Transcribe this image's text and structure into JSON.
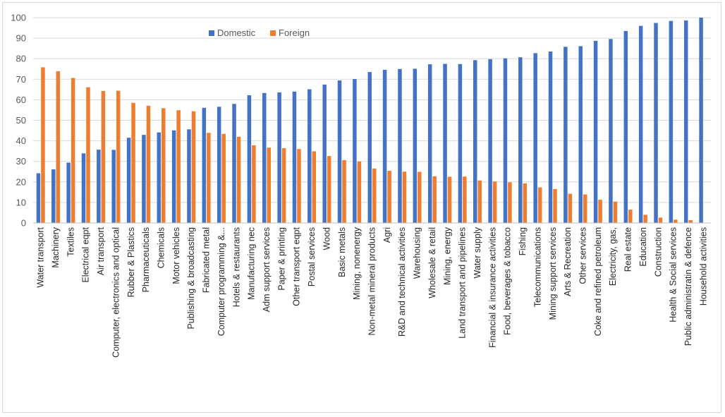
{
  "chart_data": {
    "type": "bar",
    "title": "",
    "xlabel": "",
    "ylabel": "",
    "ylim": [
      0,
      100
    ],
    "yticks": [
      0,
      10,
      20,
      30,
      40,
      50,
      60,
      70,
      80,
      90,
      100
    ],
    "grid": true,
    "legend_position": "top-left-inside",
    "categories": [
      "Water transport",
      "Machinery",
      "Textiles",
      "Electrical eqpt",
      "Air transport",
      "Computer, electronics and optical",
      "Rubber & Plastics",
      "Pharmaceuticals",
      "Chemicals",
      "Motor vehicles",
      "Publishing & broadcasting",
      "Fabricated metal",
      "Computer programming &...",
      "Hotels & restaurants",
      "Manufacturing nec",
      "Adm support services",
      "Paper & printing",
      "Other transport eqpt",
      "Postal services",
      "Wood",
      "Basic metals",
      "Mining, nonenergy",
      "Non-metal mineral products",
      "Agri",
      "R&D and technical activities",
      "Warehousing",
      "Wholesale & retail",
      "Mining, energy",
      "Land transport and pipelines",
      "Water supply",
      "Financial & insurance activities",
      "Food, beverages & tobacco",
      "Fishing",
      "Telecommunications",
      "Mining support services",
      "Arts & Recreation",
      "Other services",
      "Coke and refined petroleum",
      "Electricity, gas,",
      "Real estate",
      "Education",
      "Construction",
      "Health & Social services",
      "Public administratin & defence",
      "Household activities"
    ],
    "series": [
      {
        "name": "Domestic",
        "color": "#4472c4",
        "values": [
          24.2,
          26.1,
          29.4,
          33.9,
          35.7,
          35.6,
          41.5,
          42.9,
          44.1,
          45.1,
          45.6,
          56.1,
          56.6,
          58.0,
          62.2,
          63.3,
          63.6,
          64.0,
          65.1,
          67.4,
          69.4,
          70.1,
          73.5,
          74.6,
          75.0,
          75.1,
          77.3,
          77.5,
          77.4,
          79.3,
          79.8,
          80.2,
          80.7,
          82.7,
          83.5,
          85.8,
          86.1,
          88.7,
          89.6,
          93.5,
          96.0,
          97.4,
          98.4,
          98.6,
          100.0
        ]
      },
      {
        "name": "Foreign",
        "color": "#ed7d31",
        "values": [
          75.8,
          73.9,
          70.6,
          66.1,
          64.3,
          64.4,
          58.5,
          57.1,
          55.9,
          54.9,
          54.4,
          43.9,
          43.4,
          42.0,
          37.8,
          36.7,
          36.4,
          36.0,
          34.9,
          32.6,
          30.6,
          29.9,
          26.5,
          25.4,
          25.0,
          24.9,
          22.7,
          22.5,
          22.6,
          20.7,
          20.2,
          19.8,
          19.3,
          17.3,
          16.5,
          14.2,
          13.9,
          11.3,
          10.4,
          6.5,
          4.0,
          2.6,
          1.6,
          1.4,
          0.0
        ]
      }
    ]
  }
}
